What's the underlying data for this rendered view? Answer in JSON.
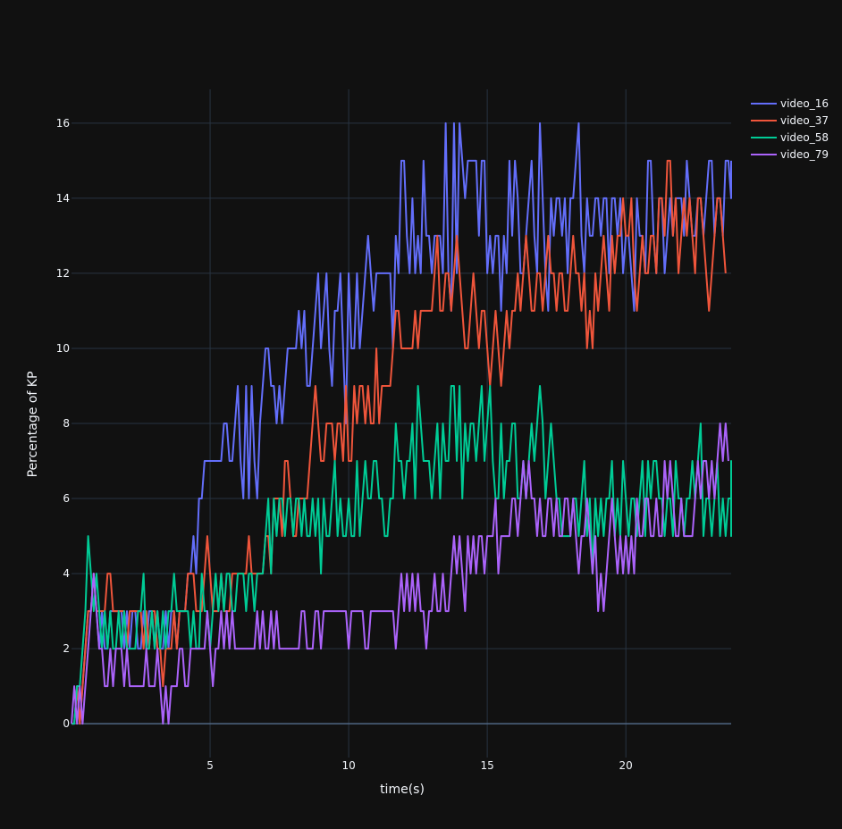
{
  "chart_data": {
    "type": "line",
    "title": "",
    "xlabel": "time(s)",
    "ylabel": "Percentage of KP",
    "xlim": [
      0,
      23.8
    ],
    "ylim": [
      -0.9,
      16.9
    ],
    "xticks": [
      5,
      10,
      15,
      20
    ],
    "yticks": [
      0,
      2,
      4,
      6,
      8,
      10,
      12,
      14,
      16
    ],
    "grid": true,
    "legend_position": "top-right",
    "x_step": 0.1,
    "series": [
      {
        "name": "video_16",
        "color": "#636efa",
        "values": [
          0,
          0,
          1,
          0,
          1,
          2,
          3,
          3,
          4,
          3,
          2,
          3,
          2,
          2,
          3,
          3,
          3,
          3,
          3,
          2,
          3,
          2,
          3,
          3,
          2,
          2,
          3,
          2,
          3,
          3,
          2,
          3,
          2,
          2,
          3,
          2,
          3,
          3,
          2,
          3,
          3,
          3,
          4,
          4,
          5,
          4,
          6,
          6,
          7,
          7,
          7,
          7,
          7,
          7,
          7,
          8,
          8,
          7,
          7,
          8,
          9,
          7,
          6,
          9,
          6,
          9,
          7,
          6,
          8,
          9,
          10,
          10,
          9,
          9,
          8,
          9,
          8,
          9,
          10,
          10,
          10,
          10,
          11,
          10,
          11,
          9,
          9,
          10,
          11,
          12,
          10,
          11,
          12,
          10,
          9,
          11,
          11,
          12,
          10,
          8,
          12,
          10,
          10,
          12,
          10,
          11,
          12,
          13,
          12,
          11,
          12,
          12,
          12,
          12,
          12,
          12,
          10,
          13,
          12,
          15,
          15,
          13,
          12,
          14,
          12,
          13,
          12,
          15,
          13,
          13,
          12,
          13,
          13,
          13,
          12,
          16,
          12,
          11,
          16,
          12,
          16,
          15,
          14,
          15,
          15,
          15,
          15,
          13,
          15,
          15,
          12,
          13,
          12,
          13,
          13,
          11,
          13,
          12,
          15,
          13,
          15,
          14,
          12,
          12,
          13,
          14,
          15,
          13,
          12,
          16,
          14,
          12,
          11,
          14,
          13,
          14,
          14,
          13,
          14,
          12,
          14,
          14,
          15,
          16,
          13,
          12,
          14,
          13,
          13,
          14,
          14,
          13,
          14,
          14,
          12,
          14,
          14,
          13,
          14,
          12,
          13,
          13,
          12,
          11,
          14,
          13,
          13,
          12,
          15,
          15,
          13,
          12,
          14,
          14,
          12,
          13,
          14,
          13,
          14,
          14,
          14,
          13,
          15,
          14,
          13,
          13,
          14,
          14,
          13,
          14,
          15,
          15,
          13,
          14,
          14,
          13,
          15,
          15,
          14,
          15,
          15
        ]
      },
      {
        "name": "video_37",
        "color": "#ef553b",
        "values": [
          0,
          0,
          1,
          0,
          1,
          2,
          3,
          3,
          4,
          3,
          3,
          3,
          3,
          4,
          4,
          3,
          3,
          3,
          3,
          3,
          2,
          3,
          3,
          3,
          3,
          3,
          2,
          3,
          2,
          3,
          3,
          2,
          2,
          1,
          2,
          2,
          2,
          3,
          2,
          3,
          3,
          3,
          4,
          4,
          4,
          3,
          3,
          3,
          4,
          5,
          4,
          3,
          3,
          3,
          4,
          3,
          3,
          3,
          4,
          4,
          4,
          4,
          4,
          4,
          5,
          4,
          4,
          4,
          4,
          4,
          5,
          5,
          4,
          6,
          6,
          6,
          5,
          7,
          7,
          6,
          5,
          5,
          6,
          6,
          6,
          6,
          7,
          8,
          9,
          8,
          7,
          7,
          8,
          8,
          8,
          7,
          8,
          8,
          7,
          9,
          7,
          7,
          9,
          8,
          9,
          9,
          8,
          9,
          8,
          8,
          10,
          8,
          9,
          9,
          9,
          9,
          10,
          11,
          11,
          10,
          10,
          10,
          10,
          10,
          11,
          10,
          11,
          11,
          11,
          11,
          11,
          12,
          13,
          11,
          11,
          12,
          12,
          11,
          12,
          13,
          12,
          11,
          10,
          10,
          11,
          12,
          11,
          10,
          11,
          11,
          10,
          9,
          10,
          11,
          10,
          9,
          10,
          11,
          10,
          11,
          11,
          12,
          11,
          12,
          13,
          12,
          11,
          11,
          12,
          12,
          11,
          12,
          13,
          12,
          12,
          11,
          12,
          12,
          11,
          11,
          12,
          13,
          12,
          12,
          11,
          12,
          10,
          11,
          10,
          12,
          11,
          12,
          13,
          12,
          11,
          13,
          12,
          13,
          13,
          14,
          13,
          13,
          14,
          12,
          11,
          12,
          13,
          12,
          12,
          13,
          13,
          12,
          14,
          14,
          13,
          15,
          15,
          13,
          14,
          12,
          13,
          14,
          13,
          14,
          13,
          12,
          14,
          14,
          13,
          12,
          11,
          12,
          13,
          14,
          14,
          13,
          12
        ]
      },
      {
        "name": "video_58",
        "color": "#00cc96",
        "values": [
          0,
          0,
          1,
          1,
          2,
          3,
          5,
          4,
          3,
          4,
          3,
          2,
          3,
          2,
          3,
          2,
          2,
          3,
          2,
          3,
          2,
          2,
          2,
          2,
          3,
          3,
          4,
          2,
          2,
          3,
          2,
          3,
          2,
          3,
          2,
          3,
          3,
          4,
          3,
          3,
          3,
          3,
          3,
          2,
          3,
          2,
          2,
          4,
          3,
          3,
          2,
          3,
          4,
          3,
          4,
          3,
          4,
          4,
          3,
          3,
          4,
          4,
          4,
          3,
          4,
          4,
          3,
          4,
          4,
          4,
          5,
          6,
          4,
          6,
          5,
          6,
          6,
          5,
          6,
          6,
          5,
          6,
          6,
          5,
          6,
          5,
          5,
          6,
          5,
          6,
          4,
          6,
          5,
          5,
          6,
          7,
          5,
          6,
          5,
          5,
          6,
          5,
          5,
          7,
          5,
          6,
          7,
          6,
          6,
          7,
          7,
          6,
          6,
          5,
          5,
          6,
          6,
          8,
          7,
          7,
          6,
          7,
          7,
          8,
          6,
          9,
          8,
          7,
          7,
          7,
          6,
          7,
          8,
          6,
          8,
          7,
          7,
          9,
          9,
          7,
          9,
          6,
          8,
          7,
          8,
          8,
          7,
          8,
          9,
          7,
          8,
          9,
          7,
          6,
          6,
          8,
          6,
          7,
          7,
          8,
          8,
          6,
          6,
          7,
          6,
          7,
          8,
          7,
          8,
          9,
          8,
          6,
          7,
          8,
          7,
          6,
          6,
          5,
          5,
          5,
          5,
          6,
          6,
          5,
          6,
          7,
          5,
          6,
          4,
          6,
          5,
          6,
          5,
          6,
          6,
          7,
          5,
          6,
          5,
          7,
          6,
          5,
          6,
          6,
          5,
          6,
          7,
          5,
          7,
          6,
          7,
          7,
          6,
          6,
          5,
          6,
          6,
          5,
          7,
          6,
          6,
          5,
          6,
          6,
          7,
          6,
          7,
          8,
          5,
          6,
          6,
          5,
          6,
          7,
          5,
          6,
          5,
          6,
          6,
          5,
          6,
          7,
          6,
          5
        ]
      },
      {
        "name": "video_79",
        "color": "#ab63fa",
        "values": [
          0,
          1,
          0,
          1,
          0,
          1,
          2,
          3,
          4,
          3,
          2,
          2,
          1,
          1,
          2,
          1,
          2,
          2,
          2,
          1,
          2,
          1,
          1,
          1,
          1,
          1,
          1,
          2,
          1,
          1,
          1,
          2,
          1,
          0,
          1,
          0,
          1,
          1,
          1,
          2,
          2,
          1,
          1,
          2,
          2,
          2,
          2,
          2,
          2,
          3,
          2,
          1,
          2,
          2,
          3,
          2,
          3,
          2,
          3,
          2,
          2,
          2,
          2,
          2,
          2,
          2,
          2,
          3,
          2,
          3,
          2,
          2,
          3,
          2,
          3,
          2,
          2,
          2,
          2,
          2,
          2,
          2,
          2,
          3,
          3,
          2,
          2,
          2,
          3,
          3,
          2,
          3,
          3,
          3,
          3,
          3,
          3,
          3,
          3,
          3,
          2,
          3,
          3,
          3,
          3,
          3,
          2,
          2,
          3,
          3,
          3,
          3,
          3,
          3,
          3,
          3,
          3,
          2,
          3,
          4,
          3,
          4,
          3,
          4,
          3,
          4,
          3,
          3,
          2,
          3,
          3,
          4,
          3,
          3,
          4,
          3,
          3,
          4,
          5,
          4,
          5,
          4,
          3,
          5,
          4,
          5,
          4,
          5,
          5,
          4,
          5,
          5,
          5,
          6,
          4,
          5,
          5,
          5,
          5,
          6,
          6,
          5,
          6,
          7,
          6,
          7,
          6,
          6,
          5,
          6,
          5,
          5,
          6,
          6,
          5,
          6,
          5,
          5,
          6,
          6,
          5,
          6,
          5,
          4,
          5,
          5,
          6,
          5,
          4,
          5,
          3,
          4,
          3,
          4,
          5,
          6,
          5,
          4,
          5,
          4,
          5,
          4,
          5,
          4,
          6,
          5,
          5,
          6,
          6,
          5,
          5,
          6,
          5,
          5,
          7,
          6,
          7,
          6,
          5,
          5,
          6,
          5,
          5,
          5,
          5,
          6,
          7,
          6,
          7,
          7,
          6,
          7,
          6,
          7,
          8,
          7,
          8,
          7
        ]
      }
    ]
  }
}
